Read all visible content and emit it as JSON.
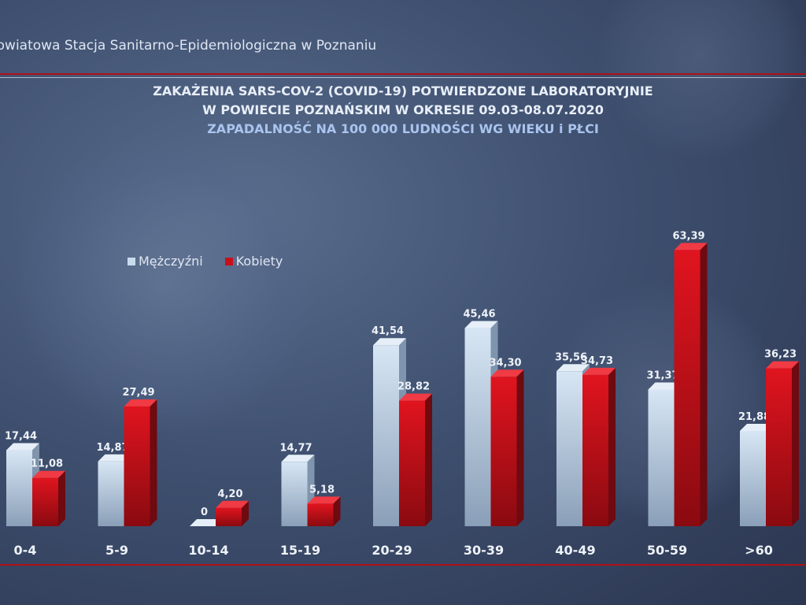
{
  "header": {
    "institution": "Powiatowa Stacja Sanitarno-Epidemiologiczna w Poznaniu"
  },
  "title": {
    "line1": "ZAKAŻENIA SARS-COV-2 (COVID-19) POTWIERDZONE LABORATORYJNIE",
    "line2": "W POWIECIE POZNAŃSKIM W OKRESIE 09.03-08.07.2020",
    "line3": "ZAPADALNOŚĆ NA 100 000 LUDNOŚCI WG WIEKU i PŁCI"
  },
  "legend": {
    "men": "Mężczyźni",
    "women": "Kobiety"
  },
  "colors": {
    "men": "#c9dcee",
    "women": "#c8101a",
    "rule": "#b01018"
  },
  "chart_data": {
    "type": "bar",
    "title": "ZAPADALNOŚĆ NA 100 000 LUDNOŚCI WG WIEKU i PŁCI",
    "xlabel": "",
    "ylabel": "",
    "categories": [
      "0-4",
      "5-9",
      "10-14",
      "15-19",
      "20-29",
      "30-39",
      "40-49",
      "50-59",
      ">60"
    ],
    "series": [
      {
        "name": "Mężczyźni",
        "values": [
          17.44,
          14.87,
          0,
          14.77,
          41.54,
          45.46,
          35.56,
          31.37,
          21.88
        ],
        "labels": [
          "17,44",
          "14,87",
          "0",
          "14,77",
          "41,54",
          "45,46",
          "35,56",
          "31,37",
          "21,88"
        ]
      },
      {
        "name": "Kobiety",
        "values": [
          11.08,
          27.49,
          4.2,
          5.18,
          28.82,
          34.3,
          34.73,
          63.39,
          36.23
        ],
        "labels": [
          "11,08",
          "27,49",
          "4,20",
          "5,18",
          "28,82",
          "34,30",
          "34,73",
          "63,39",
          "36,23"
        ]
      }
    ],
    "ylim": [
      0,
      64
    ],
    "grid": false,
    "legend_position": "top-left"
  }
}
